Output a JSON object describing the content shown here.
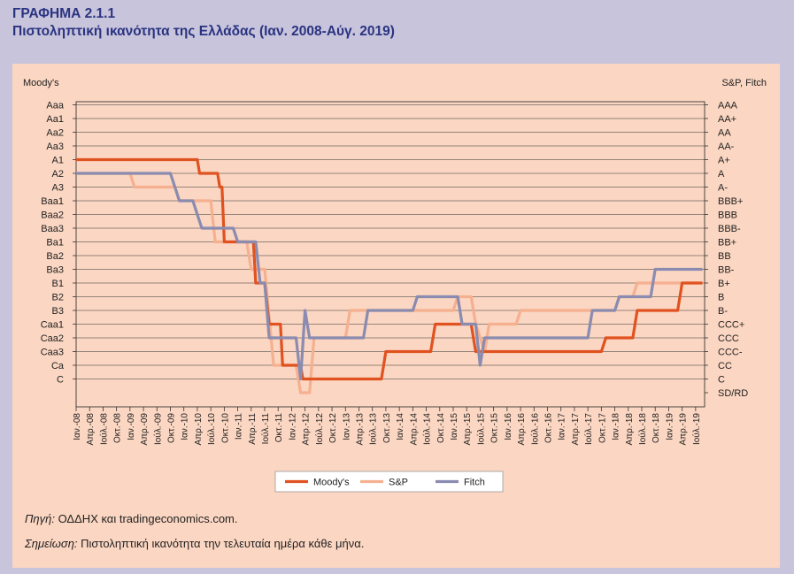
{
  "figure": {
    "label": "ΓΡΑΦΗΜΑ 2.1.1",
    "title": "Πιστοληπτική ικανότητα της Ελλάδας (Ιαν. 2008-Αύγ. 2019)"
  },
  "notes": {
    "source_label": "Πηγή:",
    "source_text": "ΟΔΔΗΧ και tradingeconomics.com.",
    "note_label": "Σημείωση:",
    "note_text": "Πιστοληπτική ικανότητα την τελευταία ημέρα κάθε μήνα."
  },
  "chart_data": {
    "type": "line",
    "title": "Πιστοληπτική ικανότητα της Ελλάδας (Ιαν. 2008-Αύγ. 2019)",
    "left_axis_title": "Moody's",
    "right_axis_title": "S&P, Fitch",
    "moodys_scale": [
      "Aaa",
      "Aa1",
      "Aa2",
      "Aa3",
      "A1",
      "A2",
      "A3",
      "Baa1",
      "Baa2",
      "Baa3",
      "Ba1",
      "Ba2",
      "Ba3",
      "B1",
      "B2",
      "B3",
      "Caa1",
      "Caa2",
      "Caa3",
      "Ca",
      "C"
    ],
    "sp_fitch_scale": [
      "AAA",
      "AA+",
      "AA",
      "AA-",
      "A+",
      "A",
      "A-",
      "BBB+",
      "BBB",
      "BBB-",
      "BB+",
      "BB",
      "BB-",
      "B+",
      "B",
      "B-",
      "CCC+",
      "CCC",
      "CCC-",
      "CC",
      "C",
      "SD/RD"
    ],
    "x_ticks": [
      "Ιαν.-08",
      "Απρ.-08",
      "Ιούλ.-08",
      "Οκτ.-08",
      "Ιαν.-09",
      "Απρ.-09",
      "Ιούλ.-09",
      "Οκτ.-09",
      "Ιαν.-10",
      "Απρ.-10",
      "Ιούλ.-10",
      "Οκτ.-10",
      "Ιαν.-11",
      "Απρ.-11",
      "Ιούλ.-11",
      "Οκτ.-11",
      "Ιαν.-12",
      "Απρ.-12",
      "Ιούλ.-12",
      "Οκτ.-12",
      "Ιαν.-13",
      "Απρ.-13",
      "Ιούλ.-13",
      "Οκτ.-13",
      "Ιαν.-14",
      "Απρ.-14",
      "Ιούλ.-14",
      "Οκτ.-14",
      "Ιαν.-15",
      "Απρ.-15",
      "Ιούλ.-15",
      "Οκτ.-15",
      "Ιαν.-16",
      "Απρ.-16",
      "Ιούλ.-16",
      "Οκτ.-16",
      "Ιαν.-17",
      "Απρ.-17",
      "Ιούλ.-17",
      "Οκτ.-17",
      "Ιαν.-18",
      "Απρ.-18",
      "Ιούλ.-18",
      "Οκτ.-18",
      "Ιαν.-19",
      "Απρ.-19",
      "Ιούλ.-19"
    ],
    "x_unit": "months since Jan 2008",
    "ylim": [
      0,
      21
    ],
    "grid": true,
    "legend_position": "bottom-center",
    "series": [
      {
        "name": "Moody's",
        "color": "#e0521f",
        "scale": "left",
        "points": [
          [
            0,
            "A1"
          ],
          [
            27,
            "A1"
          ],
          [
            27.5,
            "A2"
          ],
          [
            31.5,
            "A2"
          ],
          [
            32,
            "A3"
          ],
          [
            32.5,
            "A3"
          ],
          [
            33,
            "Ba1"
          ],
          [
            39.5,
            "Ba1"
          ],
          [
            40,
            "B1"
          ],
          [
            42,
            "B1"
          ],
          [
            43,
            "Caa1"
          ],
          [
            45.5,
            "Caa1"
          ],
          [
            46,
            "Ca"
          ],
          [
            50,
            "Ca"
          ],
          [
            50.5,
            "C"
          ],
          [
            68,
            "C"
          ],
          [
            69,
            "Caa3"
          ],
          [
            79,
            "Caa3"
          ],
          [
            80,
            "Caa1"
          ],
          [
            88,
            "Caa1"
          ],
          [
            88.5,
            "Caa2"
          ],
          [
            89,
            "Caa3"
          ],
          [
            117,
            "Caa3"
          ],
          [
            118,
            "Caa2"
          ],
          [
            124,
            "Caa2"
          ],
          [
            125,
            "B3"
          ],
          [
            134,
            "B3"
          ],
          [
            135,
            "B1"
          ],
          [
            139.5,
            "B1"
          ]
        ]
      },
      {
        "name": "S&P",
        "color": "#f5b08f",
        "scale": "right",
        "points": [
          [
            0,
            "A"
          ],
          [
            12,
            "A"
          ],
          [
            13,
            "A-"
          ],
          [
            22,
            "A-"
          ],
          [
            23,
            "BBB+"
          ],
          [
            30,
            "BBB+"
          ],
          [
            31,
            "BB+"
          ],
          [
            38,
            "BB+"
          ],
          [
            39,
            "BB-"
          ],
          [
            42,
            "BB-"
          ],
          [
            44,
            "CC"
          ],
          [
            49,
            "CC"
          ],
          [
            50,
            "SD/RD"
          ],
          [
            52,
            "SD/RD"
          ],
          [
            53,
            "CCC"
          ],
          [
            60,
            "CCC"
          ],
          [
            61,
            "B-"
          ],
          [
            84,
            "B-"
          ],
          [
            85,
            "B"
          ],
          [
            88,
            "B"
          ],
          [
            89,
            "CCC+"
          ],
          [
            91,
            "CCC-"
          ],
          [
            92,
            "CCC+"
          ],
          [
            98,
            "CCC+"
          ],
          [
            99,
            "B-"
          ],
          [
            120,
            "B-"
          ],
          [
            121,
            "B"
          ],
          [
            124,
            "B"
          ],
          [
            125,
            "B+"
          ],
          [
            139.5,
            "B+"
          ]
        ]
      },
      {
        "name": "Fitch",
        "color": "#8a8bb0",
        "scale": "right",
        "points": [
          [
            0,
            "A"
          ],
          [
            21,
            "A"
          ],
          [
            22,
            "A-"
          ],
          [
            23,
            "BBB+"
          ],
          [
            26,
            "BBB+"
          ],
          [
            27,
            "BBB"
          ],
          [
            28,
            "BBB-"
          ],
          [
            35,
            "BBB-"
          ],
          [
            36,
            "BB+"
          ],
          [
            40,
            "BB+"
          ],
          [
            41,
            "B+"
          ],
          [
            42,
            "B+"
          ],
          [
            43,
            "CCC"
          ],
          [
            49,
            "CCC"
          ],
          [
            50,
            "C"
          ],
          [
            51,
            "B-"
          ],
          [
            52,
            "CCC"
          ],
          [
            64,
            "CCC"
          ],
          [
            65,
            "B-"
          ],
          [
            75,
            "B-"
          ],
          [
            76,
            "B"
          ],
          [
            85,
            "B"
          ],
          [
            86,
            "CCC+"
          ],
          [
            89,
            "CCC+"
          ],
          [
            90,
            "CC"
          ],
          [
            91,
            "CCC"
          ],
          [
            114,
            "CCC"
          ],
          [
            115,
            "B-"
          ],
          [
            120,
            "B-"
          ],
          [
            121,
            "B"
          ],
          [
            128,
            "B"
          ],
          [
            129,
            "BB-"
          ],
          [
            139.5,
            "BB-"
          ]
        ]
      }
    ]
  }
}
